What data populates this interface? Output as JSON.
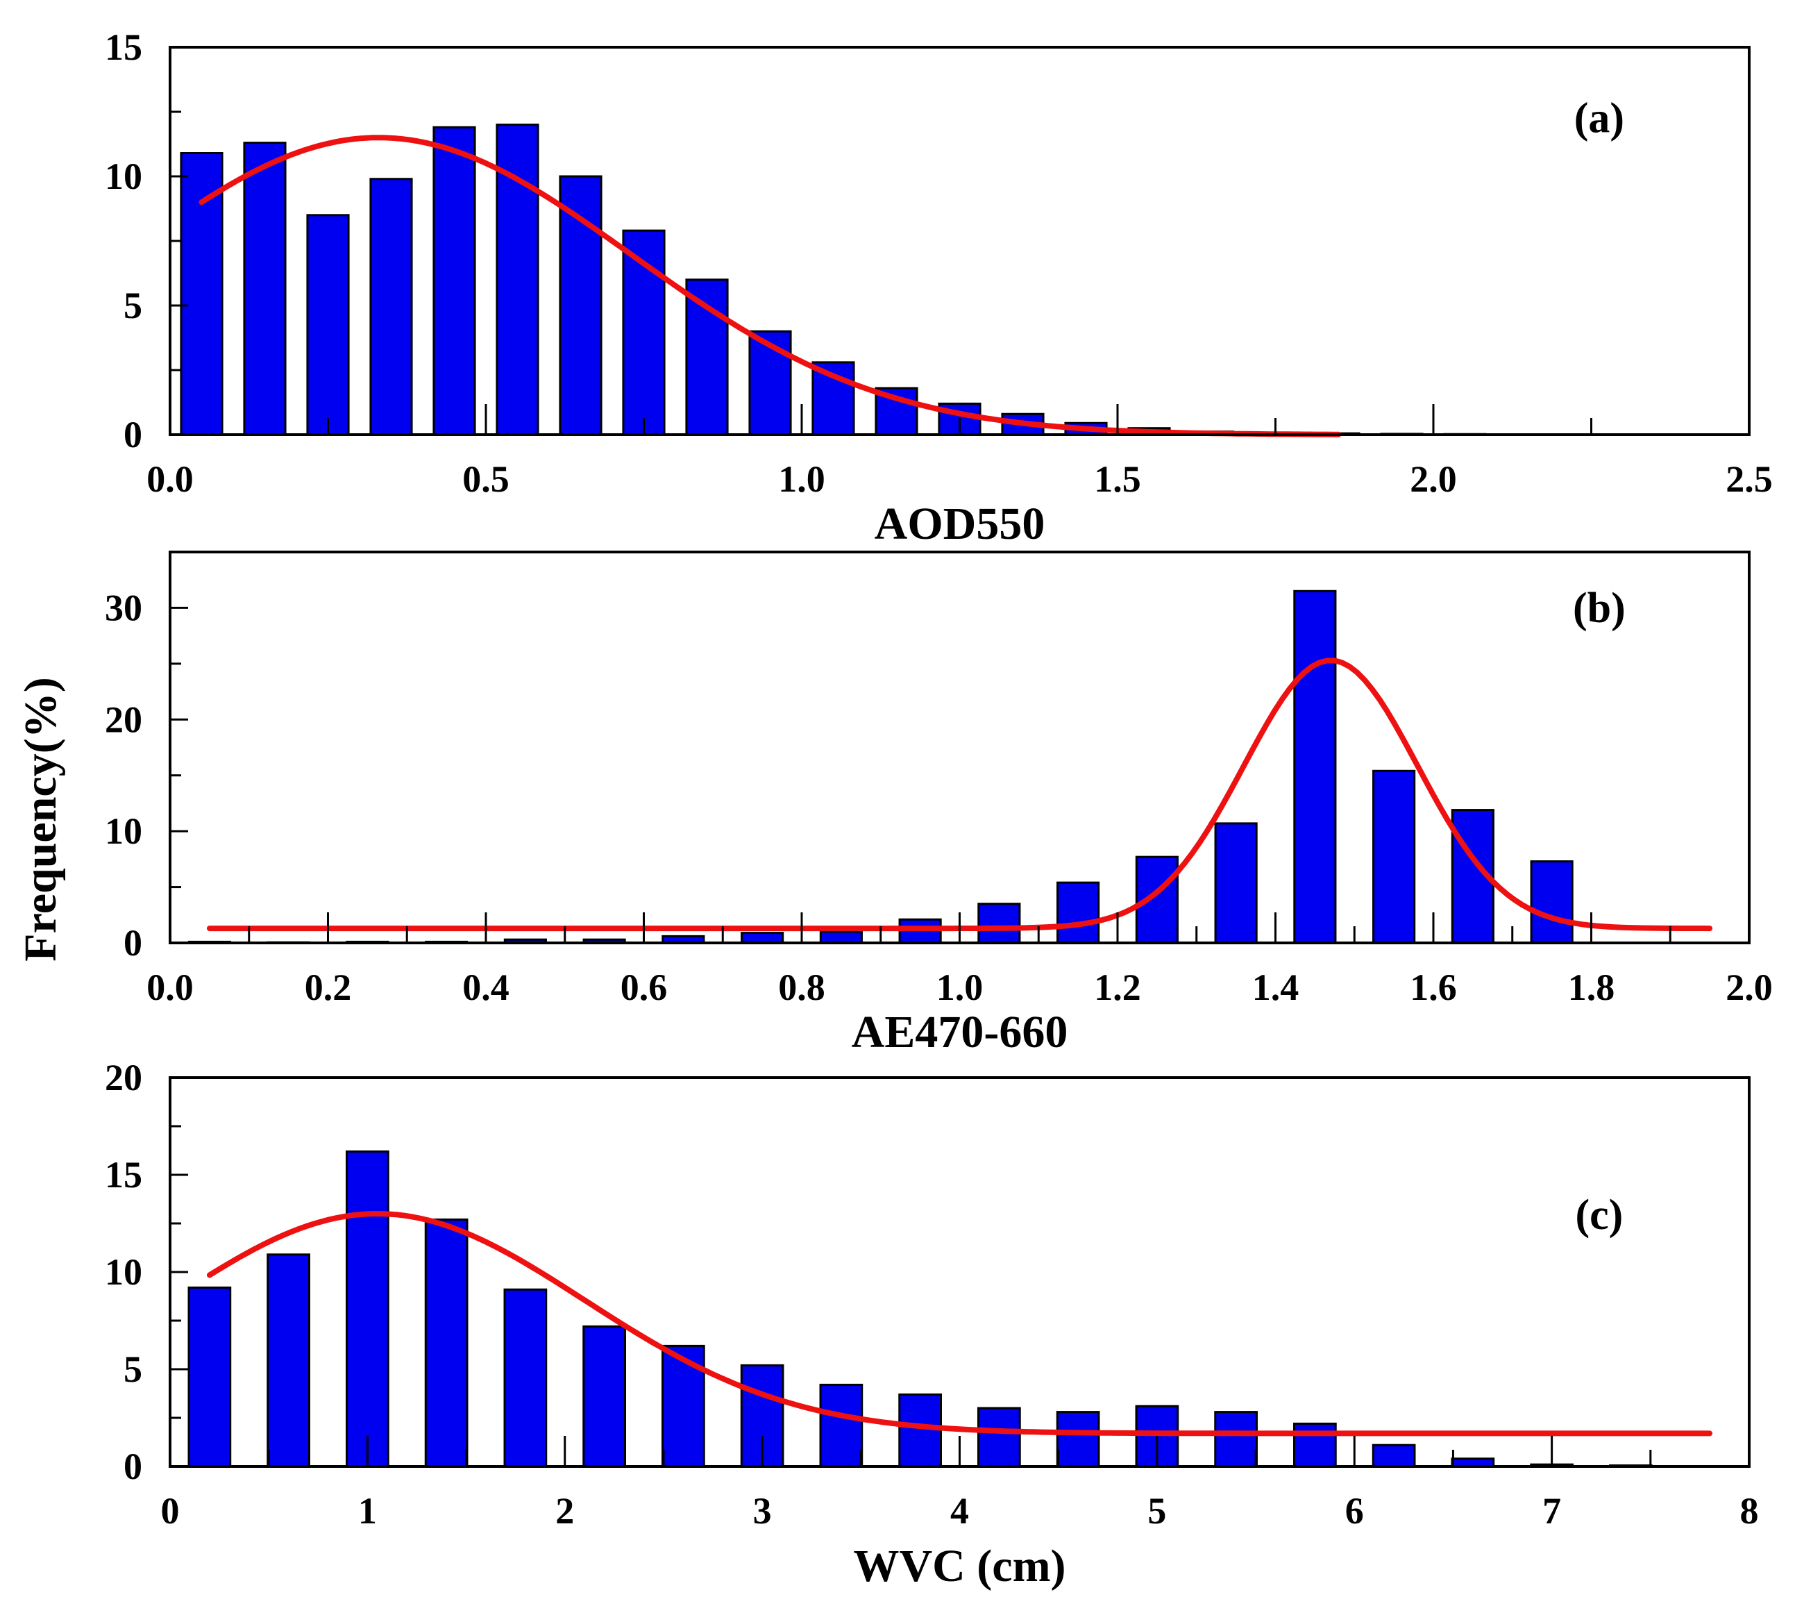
{
  "figure": {
    "ylabel": "Frequency(%)",
    "colors": {
      "bar": "#0000f0",
      "fit": "#ee1111"
    }
  },
  "chart_data": [
    {
      "type": "bar",
      "panel_label": "(a)",
      "xlabel": "AOD550",
      "xlim": [
        0,
        2.5
      ],
      "ylim": [
        0,
        15
      ],
      "xticks": [
        "0.0",
        "0.5",
        "1.0",
        "1.5",
        "2.0",
        "2.5"
      ],
      "xtick_values": [
        0,
        0.5,
        1.0,
        1.5,
        2.0,
        2.5
      ],
      "yticks": [
        "0",
        "5",
        "10",
        "15"
      ],
      "ytick_values": [
        0,
        5,
        10,
        15
      ],
      "bin_width": 0.1,
      "bar_width": 0.065,
      "x": [
        0.05,
        0.15,
        0.25,
        0.35,
        0.45,
        0.55,
        0.65,
        0.75,
        0.85,
        0.95,
        1.05,
        1.15,
        1.25,
        1.35,
        1.45,
        1.55,
        1.65,
        1.75,
        1.85,
        1.95,
        2.05,
        2.15,
        2.25,
        2.35
      ],
      "values": [
        10.9,
        11.3,
        8.5,
        9.9,
        11.9,
        12.0,
        10.0,
        7.9,
        6.0,
        4.0,
        2.8,
        1.8,
        1.2,
        0.8,
        0.45,
        0.25,
        0.12,
        0.08,
        0.05,
        0.03,
        0.02,
        0.01,
        0.01,
        0.0
      ],
      "fit": {
        "type": "gaussian",
        "y0": 0,
        "A": 11.5,
        "mu": 0.33,
        "sigma": 0.4,
        "x_range": [
          0.05,
          1.85
        ]
      }
    },
    {
      "type": "bar",
      "panel_label": "(b)",
      "xlabel": "AE470-660",
      "xlim": [
        0,
        2.0
      ],
      "ylim": [
        0,
        35
      ],
      "xticks": [
        "0.0",
        "0.2",
        "0.4",
        "0.6",
        "0.8",
        "1.0",
        "1.2",
        "1.4",
        "1.6",
        "1.8",
        "2.0"
      ],
      "xtick_values": [
        0,
        0.2,
        0.4,
        0.6,
        0.8,
        1.0,
        1.2,
        1.4,
        1.6,
        1.8,
        2.0
      ],
      "yticks": [
        "0",
        "10",
        "20",
        "30"
      ],
      "ytick_values": [
        0,
        10,
        20,
        30
      ],
      "bin_width": 0.1,
      "bar_width": 0.052,
      "x": [
        0.05,
        0.15,
        0.25,
        0.35,
        0.45,
        0.55,
        0.65,
        0.75,
        0.85,
        0.95,
        1.05,
        1.15,
        1.25,
        1.35,
        1.45,
        1.55,
        1.65,
        1.75
      ],
      "values": [
        0.1,
        0.05,
        0.1,
        0.1,
        0.3,
        0.3,
        0.6,
        0.9,
        1.0,
        2.1,
        3.5,
        5.4,
        7.7,
        10.7,
        31.5,
        15.4,
        11.9,
        7.3
      ],
      "fit": {
        "type": "gaussian",
        "y0": 1.3,
        "A": 24.0,
        "mu": 1.47,
        "sigma": 0.11,
        "x_range": [
          0.05,
          1.95
        ]
      }
    },
    {
      "type": "bar",
      "panel_label": "(c)",
      "xlabel": "WVC (cm)",
      "xlim": [
        0,
        8
      ],
      "ylim": [
        0,
        20
      ],
      "xticks": [
        "0",
        "1",
        "2",
        "3",
        "4",
        "5",
        "6",
        "7",
        "8"
      ],
      "xtick_values": [
        0,
        1,
        2,
        3,
        4,
        5,
        6,
        7,
        8
      ],
      "yticks": [
        "0",
        "5",
        "10",
        "15",
        "20"
      ],
      "ytick_values": [
        0,
        5,
        10,
        15,
        20
      ],
      "bin_width": 0.4,
      "bar_width": 0.21,
      "x": [
        0.2,
        0.6,
        1.0,
        1.4,
        1.8,
        2.2,
        2.6,
        3.0,
        3.4,
        3.8,
        4.2,
        4.6,
        5.0,
        5.4,
        5.8,
        6.2,
        6.6,
        7.0,
        7.4
      ],
      "values": [
        9.2,
        10.9,
        16.2,
        12.7,
        9.1,
        7.2,
        6.2,
        5.2,
        4.2,
        3.7,
        3.0,
        2.8,
        3.1,
        2.8,
        2.2,
        1.1,
        0.4,
        0.1,
        0.05
      ],
      "fit": {
        "type": "gaussian",
        "y0": 1.7,
        "A": 11.3,
        "mu": 1.05,
        "sigma": 1.05,
        "x_range": [
          0.2,
          7.8
        ]
      }
    }
  ]
}
